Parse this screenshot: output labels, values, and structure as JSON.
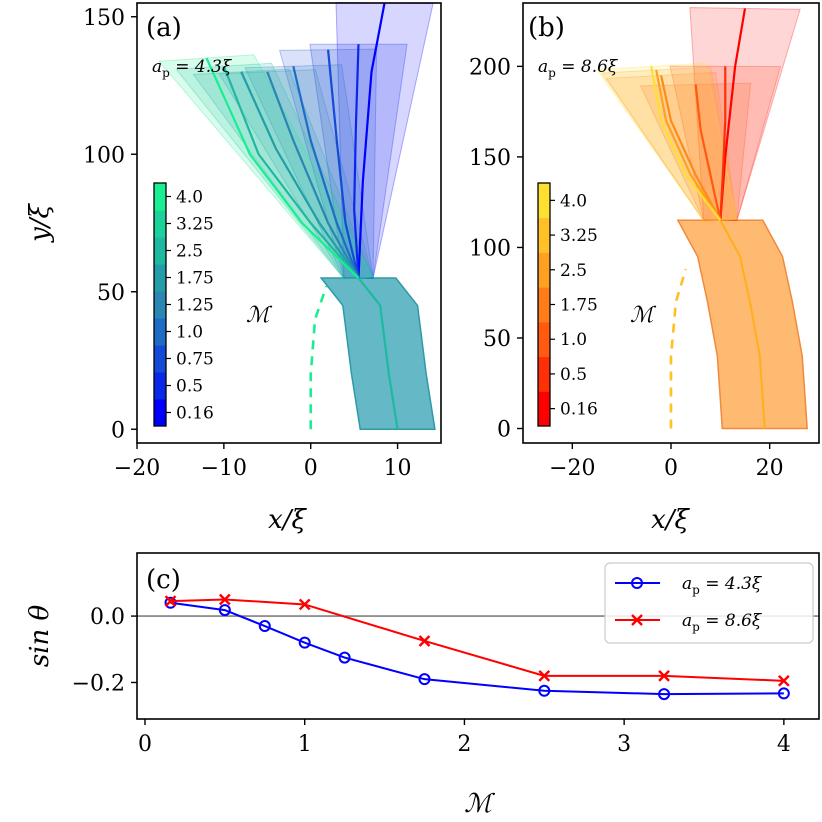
{
  "chart_data": [
    {
      "panel_label": "(a)",
      "type": "line",
      "xlabel": "x/ξ",
      "ylabel": "y/ξ",
      "xlim": [
        -20,
        15
      ],
      "ylim": [
        -5,
        155
      ],
      "xticks": [
        "−20",
        "−10",
        "0",
        "10"
      ],
      "yticks": [
        "0",
        "50",
        "100",
        "150"
      ],
      "annotation": "a_p = 4.3ξ",
      "annotation_main": "a",
      "annotation_sub": "p",
      "annotation_rest": " = 4.3ξ",
      "colorbar": {
        "label": "ℳ",
        "ticks": [
          "0.16",
          "0.5",
          "0.75",
          "1.0",
          "1.25",
          "1.75",
          "2.5",
          "3.25",
          "4.0"
        ],
        "colors": [
          "#0000ff",
          "#0a28e8",
          "#144bd6",
          "#1c6ec4",
          "#2a86b2",
          "#239ea8",
          "#1fb8a0",
          "#1cd29b",
          "#18ee92"
        ]
      },
      "series": [
        {
          "M": 0.16,
          "color": "#0000ff",
          "x": [
            5.5,
            6,
            7,
            8.5
          ],
          "y": [
            55,
            90,
            130,
            155
          ]
        },
        {
          "M": 0.5,
          "color": "#0a28e8",
          "x": [
            5.5,
            5,
            5.2,
            5.5
          ],
          "y": [
            55,
            80,
            110,
            140
          ]
        },
        {
          "M": 0.75,
          "color": "#144bd6",
          "x": [
            5.5,
            4,
            3,
            2
          ],
          "y": [
            55,
            75,
            105,
            138
          ]
        },
        {
          "M": 1.0,
          "color": "#1c6ec4",
          "x": [
            5.5,
            3,
            0,
            -2
          ],
          "y": [
            55,
            75,
            105,
            132
          ]
        },
        {
          "M": 1.25,
          "color": "#2a86b2",
          "x": [
            5.5,
            2,
            -2,
            -5
          ],
          "y": [
            55,
            75,
            105,
            130
          ]
        },
        {
          "M": 1.75,
          "color": "#239ea8",
          "x": [
            5.5,
            1,
            -4,
            -8
          ],
          "y": [
            55,
            75,
            102,
            130
          ]
        },
        {
          "M": 2.5,
          "color": "#1fb8a0",
          "x": [
            5.5,
            0,
            -6,
            -10
          ],
          "y": [
            55,
            75,
            100,
            132
          ]
        },
        {
          "M": 4.0,
          "color": "#18ee92",
          "x": [
            5.5,
            -1,
            -7,
            -12
          ],
          "y": [
            55,
            75,
            100,
            135
          ]
        }
      ],
      "stem": {
        "color": "#1fb8a0",
        "x": [
          5.5,
          8,
          9,
          10
        ],
        "y": [
          55,
          45,
          20,
          0
        ]
      },
      "dashed": {
        "color": "#18ee92",
        "x": [
          0,
          0,
          0.5,
          1.8
        ],
        "y": [
          0,
          20,
          40,
          52
        ]
      }
    },
    {
      "panel_label": "(b)",
      "type": "line",
      "xlabel": "x/ξ",
      "ylabel": "",
      "xlim": [
        -30,
        30
      ],
      "ylim": [
        -8,
        235
      ],
      "xticks": [
        "−20",
        "0",
        "20"
      ],
      "yticks": [
        "0",
        "50",
        "100",
        "150",
        "200"
      ],
      "annotation": "a_p = 8.6ξ",
      "annotation_main": "a",
      "annotation_sub": "p",
      "annotation_rest": " = 8.6ξ",
      "colorbar": {
        "label": "ℳ",
        "ticks": [
          "0.16",
          "0.5",
          "1.0",
          "1.75",
          "2.5",
          "3.25",
          "4.0"
        ],
        "colors": [
          "#ff0000",
          "#ff3008",
          "#ff5a10",
          "#ff7d18",
          "#ffa022",
          "#ffc028",
          "#ffe030"
        ]
      },
      "series": [
        {
          "M": 0.16,
          "color": "#ff0000",
          "x": [
            10,
            11,
            13,
            15
          ],
          "y": [
            115,
            150,
            200,
            232
          ]
        },
        {
          "M": 0.5,
          "color": "#ff3008",
          "x": [
            10,
            10.5,
            11,
            11
          ],
          "y": [
            115,
            140,
            170,
            200
          ]
        },
        {
          "M": 1.0,
          "color": "#ff5a10",
          "x": [
            10,
            8,
            6,
            5
          ],
          "y": [
            115,
            140,
            165,
            190
          ]
        },
        {
          "M": 1.75,
          "color": "#ff8a18",
          "x": [
            10,
            5,
            0,
            -2
          ],
          "y": [
            115,
            140,
            170,
            195
          ]
        },
        {
          "M": 2.5,
          "color": "#ffa022",
          "x": [
            10,
            4,
            -1,
            -3
          ],
          "y": [
            115,
            140,
            170,
            198
          ]
        },
        {
          "M": 4.0,
          "color": "#ffe030",
          "x": [
            10,
            3,
            -2,
            -4
          ],
          "y": [
            115,
            140,
            170,
            200
          ]
        }
      ],
      "stem": {
        "color": "#ffb020",
        "x": [
          10,
          14,
          16,
          18,
          19
        ],
        "y": [
          115,
          95,
          70,
          40,
          0
        ]
      },
      "dashed": {
        "color": "#ffc020",
        "x": [
          0,
          0,
          1,
          3
        ],
        "y": [
          0,
          40,
          70,
          88
        ]
      }
    },
    {
      "panel_label": "(c)",
      "type": "line",
      "xlabel": "ℳ",
      "ylabel": "sin θ",
      "xlim": [
        -0.05,
        4.22
      ],
      "ylim": [
        -0.31,
        0.19
      ],
      "xticks": [
        "0",
        "1",
        "2",
        "3",
        "4"
      ],
      "yticks": [
        "−0.2",
        "0.0"
      ],
      "hline": 0.0,
      "legend_position": "top-right",
      "series": [
        {
          "name": "a_p = 4.3ξ",
          "name_main": "a",
          "name_sub": "p",
          "name_rest": " = 4.3ξ",
          "marker": "o",
          "color": "#0000ff",
          "x": [
            0.16,
            0.5,
            0.75,
            1.0,
            1.25,
            1.75,
            2.5,
            3.25,
            4.0
          ],
          "y": [
            0.04,
            0.018,
            -0.03,
            -0.08,
            -0.125,
            -0.19,
            -0.225,
            -0.235,
            -0.233
          ]
        },
        {
          "name": "a_p = 8.6ξ",
          "name_main": "a",
          "name_sub": "p",
          "name_rest": " = 8.6ξ",
          "marker": "x",
          "color": "#ff0000",
          "x": [
            0.16,
            0.5,
            1.0,
            1.75,
            2.5,
            3.25,
            4.0
          ],
          "y": [
            0.045,
            0.05,
            0.035,
            -0.075,
            -0.18,
            -0.18,
            -0.195
          ]
        }
      ]
    }
  ]
}
